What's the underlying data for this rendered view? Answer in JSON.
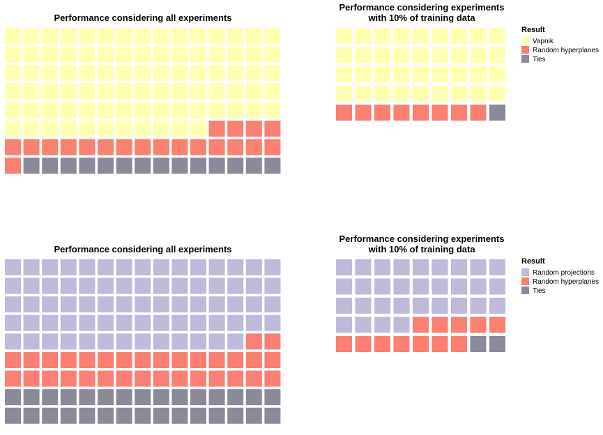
{
  "chart_data": [
    {
      "type": "waffle",
      "title": "Performance considering all experiments",
      "columns": 15,
      "series": [
        {
          "name": "Vapnik",
          "count": 86,
          "color": "#ffffb2"
        },
        {
          "name": "Random hyperplanes",
          "count": 20,
          "color": "#fa8072"
        },
        {
          "name": "Ties",
          "count": 14,
          "color": "#8a8a9b"
        }
      ]
    },
    {
      "type": "waffle",
      "title_lines": [
        "Performance considering experiments",
        "with 10% of training data"
      ],
      "columns": 9,
      "legend": {
        "title": "Result",
        "position": "right"
      },
      "series": [
        {
          "name": "Vapnik",
          "count": 36,
          "color": "#ffffb2"
        },
        {
          "name": "Random hyperplanes",
          "count": 8,
          "color": "#fa8072"
        },
        {
          "name": "Ties",
          "count": 1,
          "color": "#8a8a9b"
        }
      ]
    },
    {
      "type": "waffle",
      "title": "Performance considering all experiments",
      "columns": 15,
      "series": [
        {
          "name": "Random projections",
          "count": 73,
          "color": "#bebada"
        },
        {
          "name": "Random hyperplanes",
          "count": 32,
          "color": "#fa8072"
        },
        {
          "name": "Ties",
          "count": 30,
          "color": "#8a8a9b"
        }
      ]
    },
    {
      "type": "waffle",
      "title_lines": [
        "Performance considering experiments",
        "with 10% of training data"
      ],
      "columns": 9,
      "legend": {
        "title": "Result",
        "position": "right"
      },
      "series": [
        {
          "name": "Random projections",
          "count": 31,
          "color": "#bebada"
        },
        {
          "name": "Random hyperplanes",
          "count": 12,
          "color": "#fa8072"
        },
        {
          "name": "Ties",
          "count": 2,
          "color": "#8a8a9b"
        }
      ]
    }
  ]
}
